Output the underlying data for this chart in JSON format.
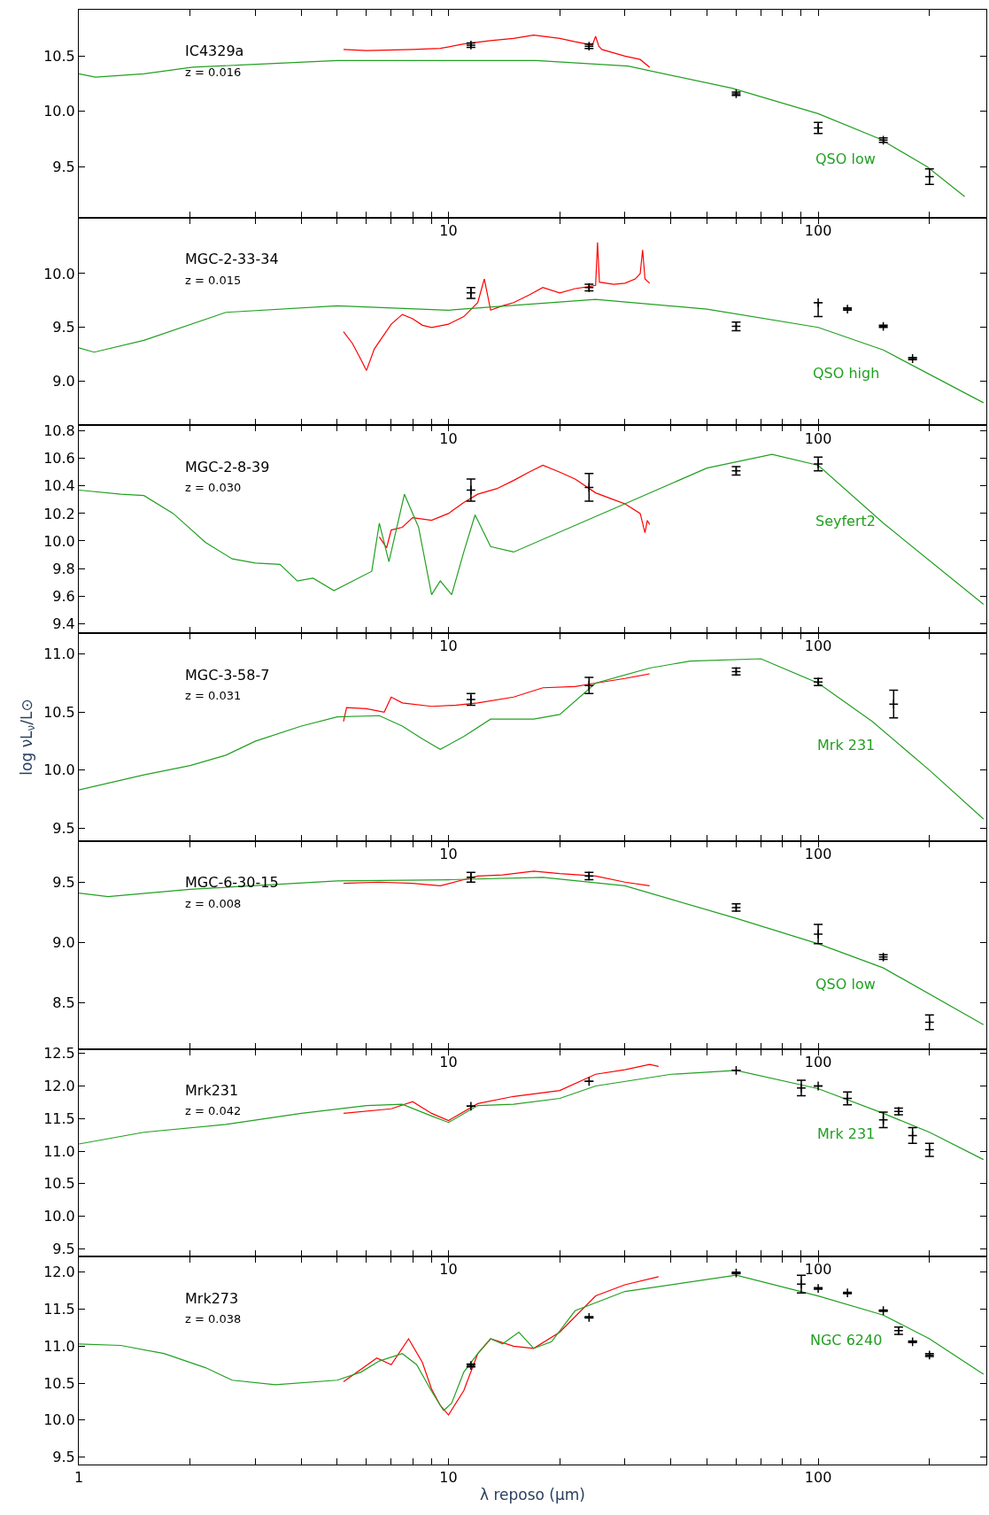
{
  "chart_data": [
    {
      "type": "line",
      "annotations": [
        "IC4329a",
        "z = 0.016",
        "QSO low"
      ],
      "xlim": [
        1,
        285
      ],
      "ylim": [
        9.04,
        10.92
      ],
      "log": "x",
      "grid": false,
      "xticks": [
        {
          "value": 1,
          "label": null
        },
        {
          "value": 2,
          "label": null
        },
        {
          "value": 3,
          "label": null
        },
        {
          "value": 4,
          "label": null
        },
        {
          "value": 5,
          "label": null
        },
        {
          "value": 6,
          "label": null
        },
        {
          "value": 7,
          "label": null
        },
        {
          "value": 8,
          "label": null
        },
        {
          "value": 9,
          "label": null
        },
        10,
        {
          "value": 20,
          "label": null
        },
        {
          "value": 30,
          "label": null
        },
        {
          "value": 40,
          "label": null
        },
        {
          "value": 50,
          "label": null
        },
        {
          "value": 60,
          "label": null
        },
        {
          "value": 70,
          "label": null
        },
        {
          "value": 80,
          "label": null
        },
        {
          "value": 90,
          "label": null
        },
        100,
        {
          "value": 200,
          "label": null
        }
      ],
      "yticks": [
        {
          "value": 9.5,
          "label": "9.5"
        },
        {
          "value": 10.0,
          "label": "10.0"
        },
        {
          "value": 10.5,
          "label": "10.5"
        }
      ],
      "series": [
        {
          "color": "#ff0000",
          "x": [
            5.2,
            6,
            8,
            9.5,
            11,
            13,
            15,
            17,
            20,
            22,
            24.5,
            25,
            25.5,
            26,
            30,
            33,
            35
          ],
          "values": [
            10.56,
            10.55,
            10.56,
            10.57,
            10.61,
            10.64,
            10.66,
            10.69,
            10.66,
            10.63,
            10.6,
            10.68,
            10.59,
            10.56,
            10.5,
            10.47,
            10.4
          ]
        },
        {
          "color": "#22a022",
          "x": [
            1,
            1.11,
            1.5,
            2.03,
            2.75,
            5,
            10,
            17.3,
            30.6,
            58.5,
            100,
            147,
            197,
            249
          ],
          "values": [
            10.34,
            10.31,
            10.34,
            10.4,
            10.42,
            10.46,
            10.46,
            10.46,
            10.41,
            10.21,
            9.98,
            9.75,
            9.5,
            9.23
          ]
        },
        {
          "type": "scatter",
          "marker": "cross",
          "color": "#000000",
          "x": [
            11.5,
            24,
            60,
            100,
            150,
            200
          ],
          "values": [
            10.6,
            10.59,
            10.16,
            9.85,
            9.74,
            9.41
          ],
          "errors": [
            0.02,
            0.02,
            0.015,
            0.05,
            0.02,
            0.07
          ]
        }
      ]
    },
    {
      "type": "line",
      "annotations": [
        "MGC-2-33-34",
        "z = 0.015",
        "QSO high"
      ],
      "xlim": [
        1,
        285
      ],
      "ylim": [
        8.59,
        10.52
      ],
      "log": "x",
      "grid": false,
      "xticks": [
        {
          "value": 1,
          "label": null
        },
        {
          "value": 2,
          "label": null
        },
        {
          "value": 3,
          "label": null
        },
        {
          "value": 4,
          "label": null
        },
        {
          "value": 5,
          "label": null
        },
        {
          "value": 6,
          "label": null
        },
        {
          "value": 7,
          "label": null
        },
        {
          "value": 8,
          "label": null
        },
        {
          "value": 9,
          "label": null
        },
        10,
        {
          "value": 20,
          "label": null
        },
        {
          "value": 30,
          "label": null
        },
        {
          "value": 40,
          "label": null
        },
        {
          "value": 50,
          "label": null
        },
        {
          "value": 60,
          "label": null
        },
        {
          "value": 70,
          "label": null
        },
        {
          "value": 80,
          "label": null
        },
        {
          "value": 90,
          "label": null
        },
        100,
        {
          "value": 200,
          "label": null
        }
      ],
      "yticks": [
        {
          "value": 9.0,
          "label": "9.0"
        },
        {
          "value": 9.5,
          "label": "9.5"
        },
        {
          "value": 10.0,
          "label": "10.0"
        }
      ],
      "series": [
        {
          "color": "#ff0000",
          "x": [
            5.2,
            5.5,
            5.8,
            6,
            6.3,
            7,
            7.5,
            8,
            8.5,
            9,
            10,
            11,
            12,
            12.5,
            13,
            14,
            15,
            16.5,
            18,
            20,
            22,
            24,
            25,
            25.3,
            25.6,
            28,
            30,
            32,
            33,
            33.5,
            34,
            35
          ],
          "values": [
            9.46,
            9.35,
            9.2,
            9.1,
            9.3,
            9.53,
            9.62,
            9.58,
            9.52,
            9.5,
            9.53,
            9.6,
            9.73,
            9.95,
            9.66,
            9.7,
            9.73,
            9.8,
            9.87,
            9.82,
            9.86,
            9.88,
            9.89,
            10.29,
            9.92,
            9.9,
            9.91,
            9.95,
            10.0,
            10.22,
            9.95,
            9.91
          ]
        },
        {
          "color": "#22a022",
          "x": [
            1,
            1.1,
            1.5,
            2.5,
            5,
            10,
            25,
            50,
            100,
            150,
            280
          ],
          "values": [
            9.31,
            9.27,
            9.38,
            9.64,
            9.7,
            9.66,
            9.76,
            9.67,
            9.5,
            9.29,
            8.8
          ]
        },
        {
          "type": "scatter",
          "marker": "cross",
          "color": "#000000",
          "x": [
            11.5,
            24,
            60,
            100,
            120,
            150,
            180
          ],
          "values": [
            9.82,
            9.87,
            9.51,
            9.73,
            9.67,
            9.51,
            9.21
          ],
          "errors": [
            0.05,
            0.03,
            0.04,
            [
              9.6,
              9.73
            ],
            0.01,
            0.01,
            0.01
          ]
        }
      ]
    },
    {
      "type": "line",
      "annotations": [
        "MGC-2-8-39",
        "z = 0.030",
        "Seyfert2"
      ],
      "xlim": [
        1,
        285
      ],
      "ylim": [
        9.33,
        10.84
      ],
      "log": "x",
      "grid": false,
      "xticks": [
        {
          "value": 1,
          "label": null
        },
        {
          "value": 2,
          "label": null
        },
        {
          "value": 3,
          "label": null
        },
        {
          "value": 4,
          "label": null
        },
        {
          "value": 5,
          "label": null
        },
        {
          "value": 6,
          "label": null
        },
        {
          "value": 7,
          "label": null
        },
        {
          "value": 8,
          "label": null
        },
        {
          "value": 9,
          "label": null
        },
        10,
        {
          "value": 20,
          "label": null
        },
        {
          "value": 30,
          "label": null
        },
        {
          "value": 40,
          "label": null
        },
        {
          "value": 50,
          "label": null
        },
        {
          "value": 60,
          "label": null
        },
        {
          "value": 70,
          "label": null
        },
        {
          "value": 80,
          "label": null
        },
        {
          "value": 90,
          "label": null
        },
        100,
        {
          "value": 200,
          "label": null
        }
      ],
      "yticks": [
        {
          "value": 9.4,
          "label": "9.4"
        },
        {
          "value": 9.6,
          "label": "9.6"
        },
        {
          "value": 9.8,
          "label": "9.8"
        },
        {
          "value": 10.0,
          "label": "10.0"
        },
        {
          "value": 10.2,
          "label": "10.2"
        },
        {
          "value": 10.4,
          "label": "10.4"
        },
        {
          "value": 10.6,
          "label": "10.6"
        },
        {
          "value": 10.8,
          "label": "10.8"
        }
      ],
      "series": [
        {
          "color": "#ff0000",
          "x": [
            6.5,
            6.8,
            7,
            7.5,
            8,
            9,
            10,
            11,
            12,
            13.5,
            15,
            16.5,
            18,
            20,
            22,
            25,
            28,
            30,
            33,
            34,
            34.5,
            35
          ],
          "values": [
            10.03,
            9.95,
            10.08,
            10.1,
            10.17,
            10.15,
            10.2,
            10.28,
            10.34,
            10.38,
            10.44,
            10.5,
            10.55,
            10.5,
            10.45,
            10.35,
            10.3,
            10.27,
            10.2,
            10.06,
            10.15,
            10.12
          ]
        },
        {
          "color": "#22a022",
          "x": [
            1,
            1.3,
            1.5,
            1.8,
            2.2,
            2.6,
            3.0,
            3.5,
            3.9,
            4.3,
            4.9,
            6.2,
            6.5,
            6.9,
            7.6,
            8.3,
            9.0,
            9.5,
            10.2,
            11.0,
            11.8,
            13,
            15,
            30,
            50,
            75,
            100,
            150,
            280
          ],
          "values": [
            10.37,
            10.34,
            10.33,
            10.2,
            9.99,
            9.87,
            9.84,
            9.83,
            9.71,
            9.73,
            9.64,
            9.78,
            10.13,
            9.85,
            10.34,
            10.1,
            9.61,
            9.71,
            9.61,
            9.92,
            10.19,
            9.96,
            9.92,
            10.27,
            10.53,
            10.63,
            10.55,
            10.13,
            9.54
          ]
        },
        {
          "type": "scatter",
          "marker": "cross",
          "color": "#000000",
          "x": [
            11.5,
            24,
            60,
            100
          ],
          "values": [
            10.37,
            10.39,
            10.51,
            10.56
          ],
          "errors": [
            0.08,
            0.1,
            0.03,
            0.05
          ]
        }
      ]
    },
    {
      "type": "line",
      "annotations": [
        "MGC-3-58-7",
        "z = 0.031",
        "Mrk 231"
      ],
      "ylabel": "log νL$_{ν}$/L⊙",
      "xlim": [
        1,
        285
      ],
      "ylim": [
        9.39,
        11.18
      ],
      "log": "x",
      "grid": false,
      "xticks": [
        {
          "value": 1,
          "label": null
        },
        {
          "value": 2,
          "label": null
        },
        {
          "value": 3,
          "label": null
        },
        {
          "value": 4,
          "label": null
        },
        {
          "value": 5,
          "label": null
        },
        {
          "value": 6,
          "label": null
        },
        {
          "value": 7,
          "label": null
        },
        {
          "value": 8,
          "label": null
        },
        {
          "value": 9,
          "label": null
        },
        10,
        {
          "value": 20,
          "label": null
        },
        {
          "value": 30,
          "label": null
        },
        {
          "value": 40,
          "label": null
        },
        {
          "value": 50,
          "label": null
        },
        {
          "value": 60,
          "label": null
        },
        {
          "value": 70,
          "label": null
        },
        {
          "value": 80,
          "label": null
        },
        {
          "value": 90,
          "label": null
        },
        100,
        {
          "value": 200,
          "label": null
        }
      ],
      "yticks": [
        {
          "value": 9.5,
          "label": "9.5"
        },
        {
          "value": 10.0,
          "label": "10.0"
        },
        {
          "value": 10.5,
          "label": "10.5"
        },
        {
          "value": 11.0,
          "label": "11.0"
        }
      ],
      "series": [
        {
          "color": "#ff0000",
          "x": [
            5.2,
            5.3,
            6,
            6.7,
            7,
            7.5,
            9,
            10.5,
            12,
            15,
            18,
            22,
            25,
            30,
            35
          ],
          "values": [
            10.42,
            10.54,
            10.53,
            10.5,
            10.63,
            10.58,
            10.55,
            10.56,
            10.58,
            10.63,
            10.71,
            10.72,
            10.75,
            10.79,
            10.83
          ]
        },
        {
          "color": "#22a022",
          "x": [
            1,
            1.5,
            2,
            2.5,
            3,
            4,
            5,
            6.5,
            7.5,
            8.5,
            9.5,
            11,
            13,
            17,
            20,
            25,
            35,
            45,
            70,
            100,
            140,
            200,
            280
          ],
          "values": [
            9.83,
            9.96,
            10.04,
            10.13,
            10.25,
            10.38,
            10.46,
            10.47,
            10.38,
            10.27,
            10.18,
            10.29,
            10.44,
            10.44,
            10.48,
            10.75,
            10.88,
            10.94,
            10.96,
            10.75,
            10.42,
            10.0,
            9.58
          ]
        },
        {
          "type": "scatter",
          "marker": "cross",
          "color": "#000000",
          "x": [
            11.5,
            24,
            60,
            100,
            160
          ],
          "values": [
            10.61,
            10.73,
            10.85,
            10.76,
            10.57
          ],
          "errors": [
            0.05,
            0.07,
            0.03,
            0.03,
            0.12
          ]
        }
      ]
    },
    {
      "type": "line",
      "annotations": [
        "MGC-6-30-15",
        "z = 0.008",
        "QSO low"
      ],
      "xlim": [
        1,
        285
      ],
      "ylim": [
        8.12,
        9.84
      ],
      "log": "x",
      "grid": false,
      "xticks": [
        {
          "value": 1,
          "label": null
        },
        {
          "value": 2,
          "label": null
        },
        {
          "value": 3,
          "label": null
        },
        {
          "value": 4,
          "label": null
        },
        {
          "value": 5,
          "label": null
        },
        {
          "value": 6,
          "label": null
        },
        {
          "value": 7,
          "label": null
        },
        {
          "value": 8,
          "label": null
        },
        {
          "value": 9,
          "label": null
        },
        10,
        {
          "value": 20,
          "label": null
        },
        {
          "value": 30,
          "label": null
        },
        {
          "value": 40,
          "label": null
        },
        {
          "value": 50,
          "label": null
        },
        {
          "value": 60,
          "label": null
        },
        {
          "value": 70,
          "label": null
        },
        {
          "value": 80,
          "label": null
        },
        {
          "value": 90,
          "label": null
        },
        100,
        {
          "value": 200,
          "label": null
        }
      ],
      "yticks": [
        {
          "value": 8.5,
          "label": "8.5"
        },
        {
          "value": 9.0,
          "label": "9.0"
        },
        {
          "value": 9.5,
          "label": "9.5"
        }
      ],
      "series": [
        {
          "color": "#ff0000",
          "x": [
            5.2,
            6.5,
            8,
            9.5,
            11,
            12,
            14,
            17,
            20,
            25,
            30,
            35
          ],
          "values": [
            9.49,
            9.5,
            9.49,
            9.47,
            9.52,
            9.55,
            9.56,
            9.59,
            9.57,
            9.55,
            9.5,
            9.47
          ]
        },
        {
          "color": "#22a022",
          "x": [
            1,
            1.2,
            2,
            5,
            10,
            18,
            30,
            60,
            100,
            150,
            280
          ],
          "values": [
            9.41,
            9.38,
            9.44,
            9.51,
            9.52,
            9.54,
            9.47,
            9.2,
            8.99,
            8.79,
            8.32
          ]
        },
        {
          "type": "scatter",
          "marker": "cross",
          "color": "#000000",
          "x": [
            11.5,
            24,
            60,
            100,
            150,
            200
          ],
          "values": [
            9.54,
            9.55,
            9.29,
            9.07,
            8.88,
            8.34
          ],
          "errors": [
            0.04,
            0.03,
            0.03,
            0.08,
            0.02,
            0.06
          ]
        }
      ]
    },
    {
      "type": "line",
      "annotations": [
        "Mrk231",
        "z = 0.042",
        "Mrk 231"
      ],
      "xlim": [
        1,
        285
      ],
      "ylim": [
        9.38,
        12.57
      ],
      "log": "x",
      "grid": false,
      "xticks": [
        {
          "value": 1,
          "label": null
        },
        {
          "value": 2,
          "label": null
        },
        {
          "value": 3,
          "label": null
        },
        {
          "value": 4,
          "label": null
        },
        {
          "value": 5,
          "label": null
        },
        {
          "value": 6,
          "label": null
        },
        {
          "value": 7,
          "label": null
        },
        {
          "value": 8,
          "label": null
        },
        {
          "value": 9,
          "label": null
        },
        10,
        {
          "value": 20,
          "label": null
        },
        {
          "value": 30,
          "label": null
        },
        {
          "value": 40,
          "label": null
        },
        {
          "value": 50,
          "label": null
        },
        {
          "value": 60,
          "label": null
        },
        {
          "value": 70,
          "label": null
        },
        {
          "value": 80,
          "label": null
        },
        {
          "value": 90,
          "label": null
        },
        100,
        {
          "value": 200,
          "label": null
        }
      ],
      "yticks": [
        {
          "value": 9.5,
          "label": "9.5"
        },
        {
          "value": 10.0,
          "label": "10.0"
        },
        {
          "value": 10.5,
          "label": "10.5"
        },
        {
          "value": 11.0,
          "label": "11.0"
        },
        {
          "value": 11.5,
          "label": "11.5"
        },
        {
          "value": 12.0,
          "label": "12.0"
        },
        {
          "value": 12.5,
          "label": "12.5"
        }
      ],
      "series": [
        {
          "color": "#ff0000",
          "x": [
            5.2,
            7,
            8,
            9,
            10,
            12,
            15,
            20,
            25,
            30,
            35,
            37
          ],
          "values": [
            11.58,
            11.65,
            11.76,
            11.58,
            11.47,
            11.73,
            11.84,
            11.93,
            12.18,
            12.25,
            12.33,
            12.3
          ]
        },
        {
          "color": "#22a022",
          "x": [
            1,
            1.5,
            2.5,
            4,
            6,
            7.5,
            9,
            10,
            12,
            15,
            20,
            25,
            40,
            60,
            100,
            150,
            200,
            280
          ],
          "values": [
            11.11,
            11.29,
            11.41,
            11.58,
            11.7,
            11.72,
            11.54,
            11.44,
            11.7,
            11.72,
            11.81,
            12.0,
            12.18,
            12.24,
            11.96,
            11.58,
            11.29,
            10.87
          ]
        },
        {
          "type": "scatter",
          "marker": "cross",
          "color": "#000000",
          "x": [
            11.5,
            24,
            60,
            90,
            100,
            120,
            150,
            165,
            180,
            200
          ],
          "values": [
            11.69,
            12.07,
            12.24,
            11.97,
            12.0,
            11.81,
            11.48,
            11.61,
            11.24,
            11.02
          ],
          "errors": [
            null,
            null,
            null,
            0.12,
            null,
            0.1,
            0.12,
            0.05,
            0.12,
            0.1
          ]
        }
      ]
    },
    {
      "type": "line",
      "annotations": [
        "Mrk273",
        "z = 0.038",
        "NGC 6240"
      ],
      "xlabel": "λ reposo (μm)",
      "xlim": [
        1,
        285
      ],
      "ylim": [
        9.4,
        12.21
      ],
      "log": "x",
      "grid": false,
      "xticks": [
        1,
        {
          "value": 2,
          "label": null
        },
        {
          "value": 3,
          "label": null
        },
        {
          "value": 4,
          "label": null
        },
        {
          "value": 5,
          "label": null
        },
        {
          "value": 6,
          "label": null
        },
        {
          "value": 7,
          "label": null
        },
        {
          "value": 8,
          "label": null
        },
        {
          "value": 9,
          "label": null
        },
        10,
        {
          "value": 20,
          "label": null
        },
        {
          "value": 30,
          "label": null
        },
        {
          "value": 40,
          "label": null
        },
        {
          "value": 50,
          "label": null
        },
        {
          "value": 60,
          "label": null
        },
        {
          "value": 70,
          "label": null
        },
        {
          "value": 80,
          "label": null
        },
        {
          "value": 90,
          "label": null
        },
        100,
        {
          "value": 200,
          "label": null
        }
      ],
      "yticks": [
        {
          "value": 9.5,
          "label": "9.5"
        },
        {
          "value": 10.0,
          "label": "10.0"
        },
        {
          "value": 10.5,
          "label": "10.5"
        },
        {
          "value": 11.0,
          "label": "11.0"
        },
        {
          "value": 11.5,
          "label": "11.5"
        },
        {
          "value": 12.0,
          "label": "12.0"
        }
      ],
      "series": [
        {
          "color": "#ff0000",
          "x": [
            5.2,
            6.4,
            7,
            7.8,
            8.5,
            9,
            9.5,
            10,
            11,
            12,
            13,
            15,
            17,
            20,
            25,
            30,
            37
          ],
          "values": [
            10.52,
            10.84,
            10.75,
            11.1,
            10.78,
            10.42,
            10.2,
            10.07,
            10.4,
            10.9,
            11.1,
            11.0,
            10.97,
            11.19,
            11.68,
            11.83,
            11.94
          ]
        },
        {
          "color": "#22a022",
          "x": [
            1,
            1.3,
            1.7,
            2.2,
            2.6,
            3.4,
            5,
            5.8,
            6.5,
            7.5,
            8.2,
            9,
            9.7,
            10.2,
            11,
            12,
            13,
            14,
            15.5,
            17,
            19,
            22,
            30,
            60,
            100,
            150,
            200,
            280
          ],
          "values": [
            11.03,
            11.01,
            10.9,
            10.71,
            10.54,
            10.48,
            10.54,
            10.65,
            10.8,
            10.9,
            10.75,
            10.39,
            10.13,
            10.23,
            10.65,
            10.9,
            11.1,
            11.03,
            11.19,
            10.97,
            11.06,
            11.48,
            11.74,
            11.96,
            11.68,
            11.42,
            11.1,
            10.62
          ]
        },
        {
          "type": "scatter",
          "marker": "cross",
          "color": "#000000",
          "x": [
            11.5,
            24,
            60,
            90,
            100,
            120,
            150,
            165,
            180,
            200
          ],
          "values": [
            10.74,
            11.39,
            11.99,
            11.84,
            11.78,
            11.72,
            11.48,
            11.21,
            11.06,
            10.88
          ],
          "errors": [
            0.02,
            0.01,
            0.01,
            0.12,
            0.01,
            0.01,
            0.01,
            0.05,
            0.01,
            0.02
          ]
        }
      ]
    }
  ]
}
